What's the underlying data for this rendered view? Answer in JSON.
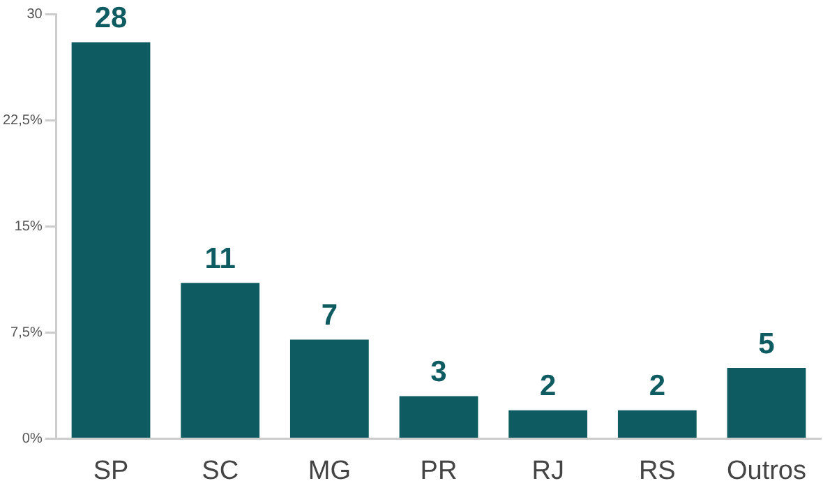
{
  "chart_data": {
    "type": "bar",
    "categories": [
      "SP",
      "SC",
      "MG",
      "PR",
      "RJ",
      "RS",
      "Outros"
    ],
    "values": [
      28,
      11,
      7,
      3,
      2,
      2,
      5
    ],
    "color": "#0e5c61",
    "ylim": [
      0,
      30
    ],
    "yticks": [
      {
        "value": 0,
        "label": "0%"
      },
      {
        "value": 7.5,
        "label": "7,5%"
      },
      {
        "value": 15,
        "label": "15%"
      },
      {
        "value": 22.5,
        "label": "22,5%"
      },
      30
    ],
    "data_labels": true,
    "grid": false,
    "legend": false
  }
}
